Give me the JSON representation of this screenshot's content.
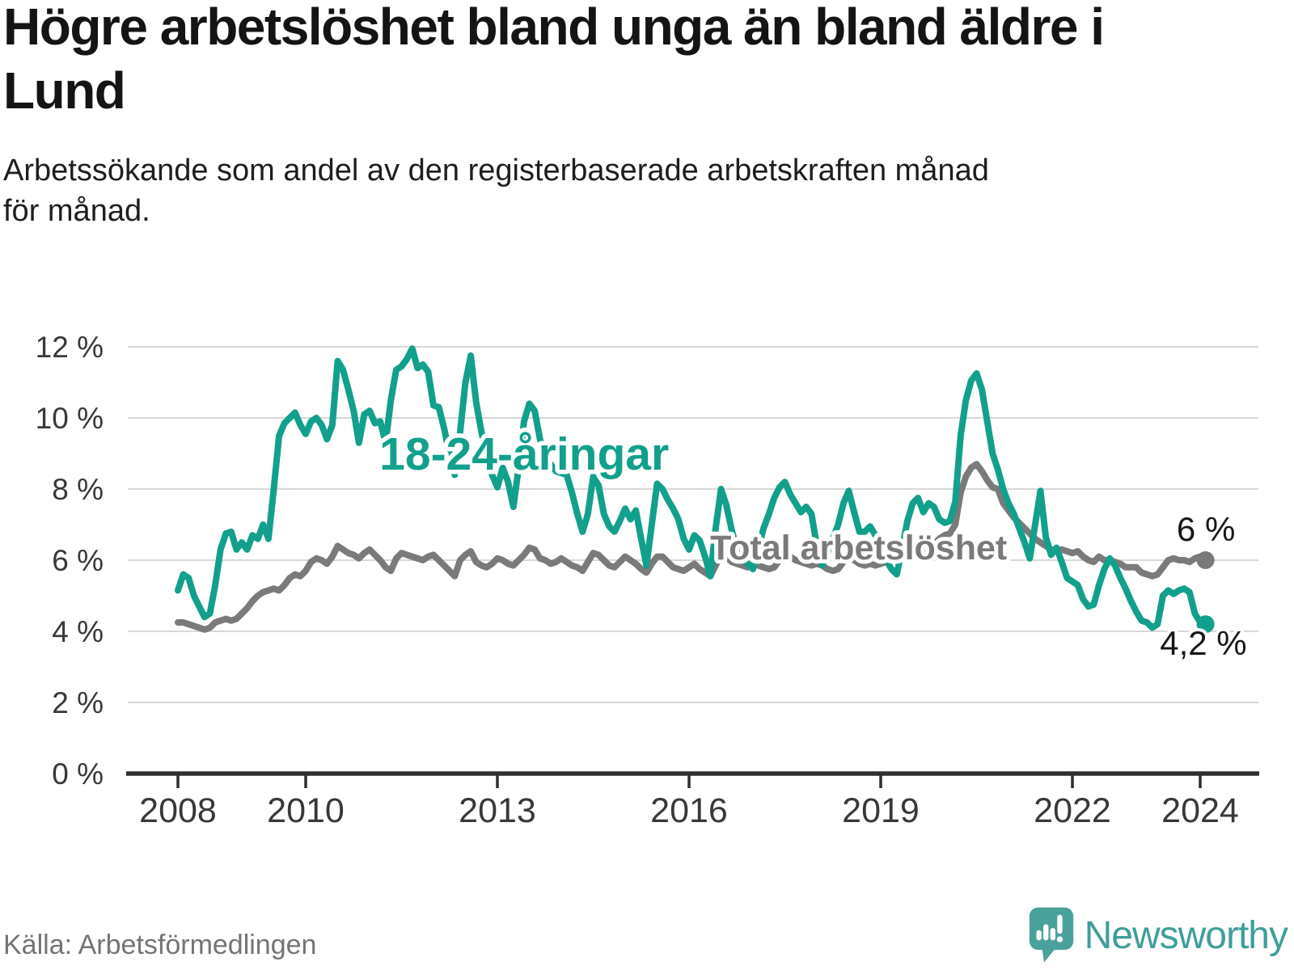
{
  "header": {
    "title": "Högre arbetslöshet bland unga än bland äldre i\nLund",
    "subtitle": "Arbetssökande som andel av den registerbaserade arbetskraften månad\nför månad."
  },
  "footer": {
    "source": "Källa: Arbetsförmedlingen",
    "brand": "Newsworthy"
  },
  "colors": {
    "youth": "#12a08c",
    "total": "#7a7a7a",
    "grid": "#d8d8d8",
    "axis": "#2e2e2e",
    "logo": "#4aa19c"
  },
  "chart_data": {
    "type": "line",
    "title": "Högre arbetslöshet bland unga än bland äldre i Lund",
    "subtitle": "Arbetssökande som andel av den registerbaserade arbetskraften månad för månad.",
    "unit": "%",
    "frequency": "monthly",
    "x_start": "2008-01",
    "x_end": "2024-02",
    "ylim": [
      0,
      12
    ],
    "grid": "horizontal",
    "legend_position": "inline-annotations",
    "y_ticks": [
      {
        "value": 12,
        "label": "12 %"
      },
      {
        "value": 10,
        "label": "10 %"
      },
      {
        "value": 8,
        "label": "8 %"
      },
      {
        "value": 6,
        "label": "6 %"
      },
      {
        "value": 4,
        "label": "4 %"
      },
      {
        "value": 2,
        "label": "2 %"
      },
      {
        "value": 0,
        "label": "0 %"
      }
    ],
    "x_ticks": [
      {
        "year": 2008,
        "label": "2008"
      },
      {
        "year": 2010,
        "label": "2010"
      },
      {
        "year": 2013,
        "label": "2013"
      },
      {
        "year": 2016,
        "label": "2016"
      },
      {
        "year": 2019,
        "label": "2019"
      },
      {
        "year": 2022,
        "label": "2022"
      },
      {
        "year": 2024,
        "label": "2024"
      }
    ],
    "series": [
      {
        "id": "youth",
        "name": "18-24-åringar",
        "color": "#12a08c",
        "end_label": "4,2 %",
        "end_label_year": 2024.05,
        "end_label_pct": 3.34,
        "values": [
          5.15,
          5.6,
          5.5,
          5.0,
          4.7,
          4.4,
          4.5,
          5.3,
          6.3,
          6.75,
          6.8,
          6.3,
          6.5,
          6.3,
          6.7,
          6.6,
          7.0,
          6.6,
          8.0,
          9.5,
          9.85,
          10.0,
          10.15,
          9.8,
          9.55,
          9.9,
          10.0,
          9.8,
          9.4,
          9.8,
          11.6,
          11.35,
          10.8,
          10.2,
          9.3,
          10.1,
          10.2,
          9.85,
          9.9,
          9.3,
          10.5,
          11.35,
          11.45,
          11.65,
          11.95,
          11.4,
          11.5,
          11.3,
          10.35,
          10.3,
          9.7,
          9.0,
          8.4,
          9.6,
          11.0,
          11.75,
          10.45,
          9.6,
          9.0,
          8.4,
          8.05,
          8.6,
          8.2,
          7.5,
          8.6,
          9.9,
          10.4,
          10.2,
          9.4,
          8.9,
          8.7,
          8.5,
          8.45,
          8.4,
          7.9,
          7.3,
          6.8,
          7.3,
          8.35,
          8.1,
          7.3,
          6.95,
          6.8,
          7.1,
          7.45,
          7.15,
          7.4,
          6.6,
          5.85,
          7.0,
          8.15,
          8.0,
          7.7,
          7.45,
          7.15,
          6.6,
          6.3,
          6.7,
          6.55,
          6.1,
          5.55,
          6.9,
          8.0,
          7.55,
          6.85,
          6.3,
          6.1,
          5.9,
          5.75,
          6.3,
          6.9,
          7.3,
          7.75,
          8.05,
          8.2,
          7.85,
          7.6,
          7.35,
          7.5,
          7.3,
          6.4,
          5.85,
          6.2,
          6.6,
          7.0,
          7.6,
          7.95,
          7.35,
          6.8,
          6.8,
          6.95,
          6.7,
          6.6,
          6.0,
          5.75,
          5.6,
          6.3,
          7.1,
          7.6,
          7.75,
          7.35,
          7.6,
          7.5,
          7.15,
          7.05,
          7.1,
          7.65,
          9.5,
          10.5,
          11.05,
          11.25,
          10.8,
          9.9,
          9.0,
          8.55,
          8.0,
          7.6,
          7.3,
          6.9,
          6.5,
          6.05,
          7.0,
          7.95,
          6.65,
          6.15,
          6.35,
          5.95,
          5.5,
          5.4,
          5.3,
          4.9,
          4.7,
          4.75,
          5.3,
          5.75,
          6.05,
          5.85,
          5.5,
          5.2,
          4.85,
          4.55,
          4.3,
          4.25,
          4.1,
          4.2,
          5.0,
          5.15,
          5.05,
          5.15,
          5.2,
          5.1,
          4.5,
          4.25,
          4.2
        ]
      },
      {
        "id": "total",
        "name": "Total arbetslöshet",
        "color": "#7a7a7a",
        "end_label": "6 %",
        "end_label_year": 2024.09,
        "end_label_pct": 6.55,
        "values": [
          4.25,
          4.25,
          4.2,
          4.15,
          4.1,
          4.05,
          4.1,
          4.25,
          4.3,
          4.35,
          4.3,
          4.35,
          4.5,
          4.65,
          4.85,
          5.0,
          5.1,
          5.15,
          5.2,
          5.15,
          5.3,
          5.5,
          5.6,
          5.55,
          5.7,
          5.95,
          6.05,
          6.0,
          5.9,
          6.1,
          6.4,
          6.3,
          6.2,
          6.15,
          6.05,
          6.2,
          6.3,
          6.15,
          6.0,
          5.8,
          5.7,
          6.05,
          6.2,
          6.15,
          6.1,
          6.05,
          6.0,
          6.1,
          6.15,
          6.0,
          5.85,
          5.7,
          5.55,
          6.0,
          6.15,
          6.25,
          5.95,
          5.85,
          5.8,
          5.9,
          6.05,
          6.0,
          5.9,
          5.85,
          6.0,
          6.15,
          6.35,
          6.3,
          6.05,
          6.0,
          5.9,
          5.95,
          6.05,
          5.95,
          5.85,
          5.8,
          5.7,
          5.95,
          6.2,
          6.15,
          6.0,
          5.85,
          5.8,
          5.95,
          6.1,
          6.0,
          5.9,
          5.75,
          5.65,
          5.9,
          6.1,
          6.1,
          5.95,
          5.8,
          5.75,
          5.7,
          5.8,
          5.9,
          5.75,
          5.65,
          5.55,
          5.85,
          6.15,
          6.1,
          5.95,
          5.9,
          5.85,
          5.8,
          5.9,
          5.85,
          5.8,
          5.75,
          5.8,
          6.0,
          6.15,
          6.1,
          6.0,
          5.95,
          5.9,
          5.85,
          5.9,
          5.85,
          5.75,
          5.7,
          5.75,
          5.95,
          6.1,
          6.0,
          5.9,
          5.85,
          5.9,
          5.85,
          5.9,
          5.95,
          6.0,
          6.05,
          6.1,
          6.2,
          6.35,
          6.35,
          6.3,
          6.35,
          6.45,
          6.6,
          6.7,
          6.75,
          7.0,
          7.9,
          8.35,
          8.6,
          8.7,
          8.5,
          8.25,
          8.05,
          8.0,
          7.6,
          7.4,
          7.2,
          7.05,
          6.9,
          6.75,
          6.6,
          6.5,
          6.4,
          6.3,
          6.25,
          6.3,
          6.25,
          6.2,
          6.25,
          6.1,
          6.0,
          5.95,
          6.1,
          6.0,
          6.0,
          5.95,
          5.9,
          5.8,
          5.8,
          5.8,
          5.65,
          5.6,
          5.55,
          5.6,
          5.8,
          6.0,
          6.05,
          6.0,
          6.0,
          5.95,
          6.05,
          6.1,
          6.0
        ]
      }
    ],
    "annotations": [
      {
        "id": "youth-series-label",
        "text": "18-24-åringar",
        "year": 2013.42,
        "pct": 8.55,
        "anchor": "middle",
        "cls": "ann-youth",
        "color": "#12a08c"
      },
      {
        "id": "total-series-label",
        "text": "Total arbetslöshet",
        "year": 2016.33,
        "pct": 6.02,
        "anchor": "start",
        "cls": "ann-total",
        "color": "#7a7a7a"
      }
    ]
  }
}
